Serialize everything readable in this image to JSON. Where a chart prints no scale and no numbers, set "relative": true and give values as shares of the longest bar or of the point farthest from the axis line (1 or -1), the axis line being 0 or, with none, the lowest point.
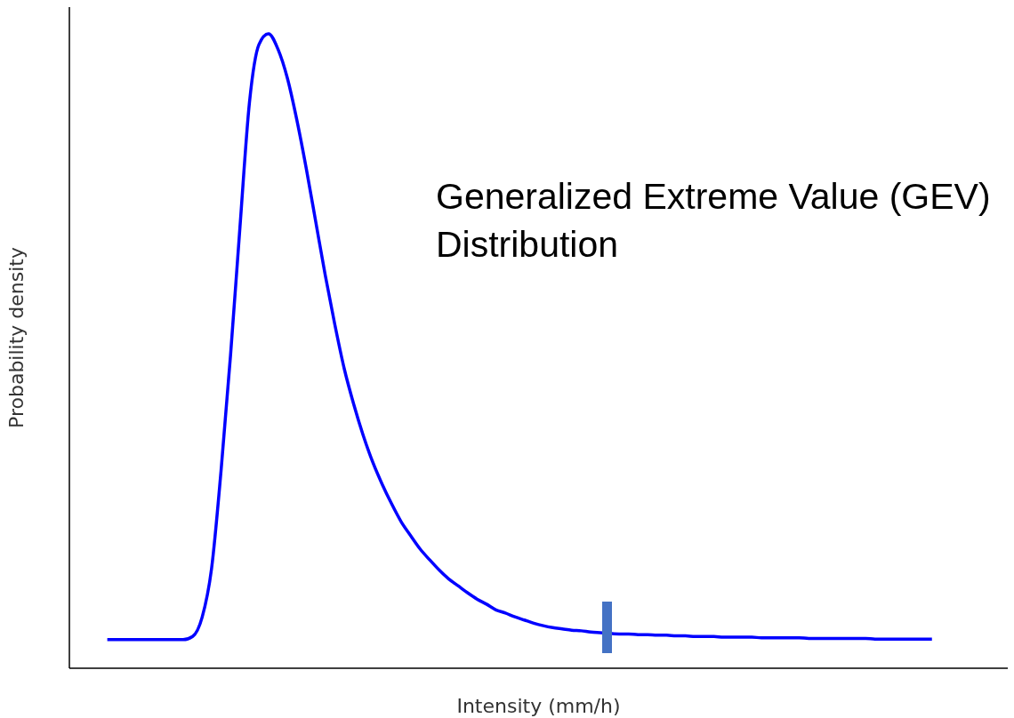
{
  "chart_data": {
    "type": "line",
    "relative": true,
    "xlabel": "Intensity (mm/h)",
    "ylabel": "Probability density",
    "grid": false,
    "legend": false,
    "marker": "none",
    "annotations": [
      "Generalized Extreme Value (GEV) Distribution"
    ],
    "categories": [
      null,
      null,
      null,
      null,
      null,
      null,
      null,
      null,
      null,
      null,
      null,
      null,
      null,
      null,
      null,
      null,
      null,
      null,
      null,
      null,
      null,
      null,
      null,
      null,
      null,
      null,
      null,
      null,
      null,
      null,
      null,
      null,
      null,
      null,
      null,
      null,
      null,
      null,
      null,
      null,
      null,
      null,
      null,
      null,
      null,
      null,
      null,
      null,
      null,
      null,
      null,
      null,
      null,
      null,
      null,
      null,
      null,
      null,
      null,
      null,
      null,
      null,
      null,
      null,
      null,
      null,
      null,
      null,
      null,
      null,
      null,
      null,
      null,
      null,
      null,
      null,
      null,
      null,
      null,
      null,
      null,
      null,
      null,
      null,
      null,
      null,
      null,
      null,
      null,
      null,
      null,
      null,
      null,
      null,
      null,
      null,
      null,
      null,
      null,
      null
    ],
    "series": [
      {
        "color": "#0000ff",
        "values": [
          null,
          null,
          null,
          null,
          0.045,
          0.045,
          0.045,
          0.045,
          0.045,
          0.045,
          0.045,
          0.045,
          0.045,
          0.05,
          0.08,
          0.157,
          0.311,
          0.493,
          0.696,
          0.892,
          0.983,
          1.0,
          0.976,
          0.93,
          0.864,
          0.787,
          0.703,
          0.619,
          0.542,
          0.472,
          0.416,
          0.367,
          0.325,
          0.29,
          0.259,
          0.231,
          0.209,
          0.188,
          0.171,
          0.155,
          0.141,
          0.13,
          0.119,
          0.109,
          0.101,
          0.092,
          0.087,
          0.081,
          0.076,
          0.071,
          0.067,
          0.064,
          0.062,
          0.06,
          0.059,
          0.057,
          0.056,
          null,
          0.054,
          0.054,
          0.053,
          0.053,
          0.052,
          0.052,
          0.051,
          0.051,
          0.05,
          0.05,
          0.05,
          0.049,
          0.049,
          0.049,
          0.049,
          0.048,
          0.048,
          0.048,
          0.048,
          0.048,
          0.047,
          0.047,
          0.047,
          0.047,
          0.047,
          0.047,
          0.047,
          0.046,
          0.046,
          0.046,
          0.046,
          0.046,
          0.046,
          0.046,
          null,
          null,
          null,
          null,
          null,
          null,
          null,
          null
        ]
      }
    ]
  }
}
